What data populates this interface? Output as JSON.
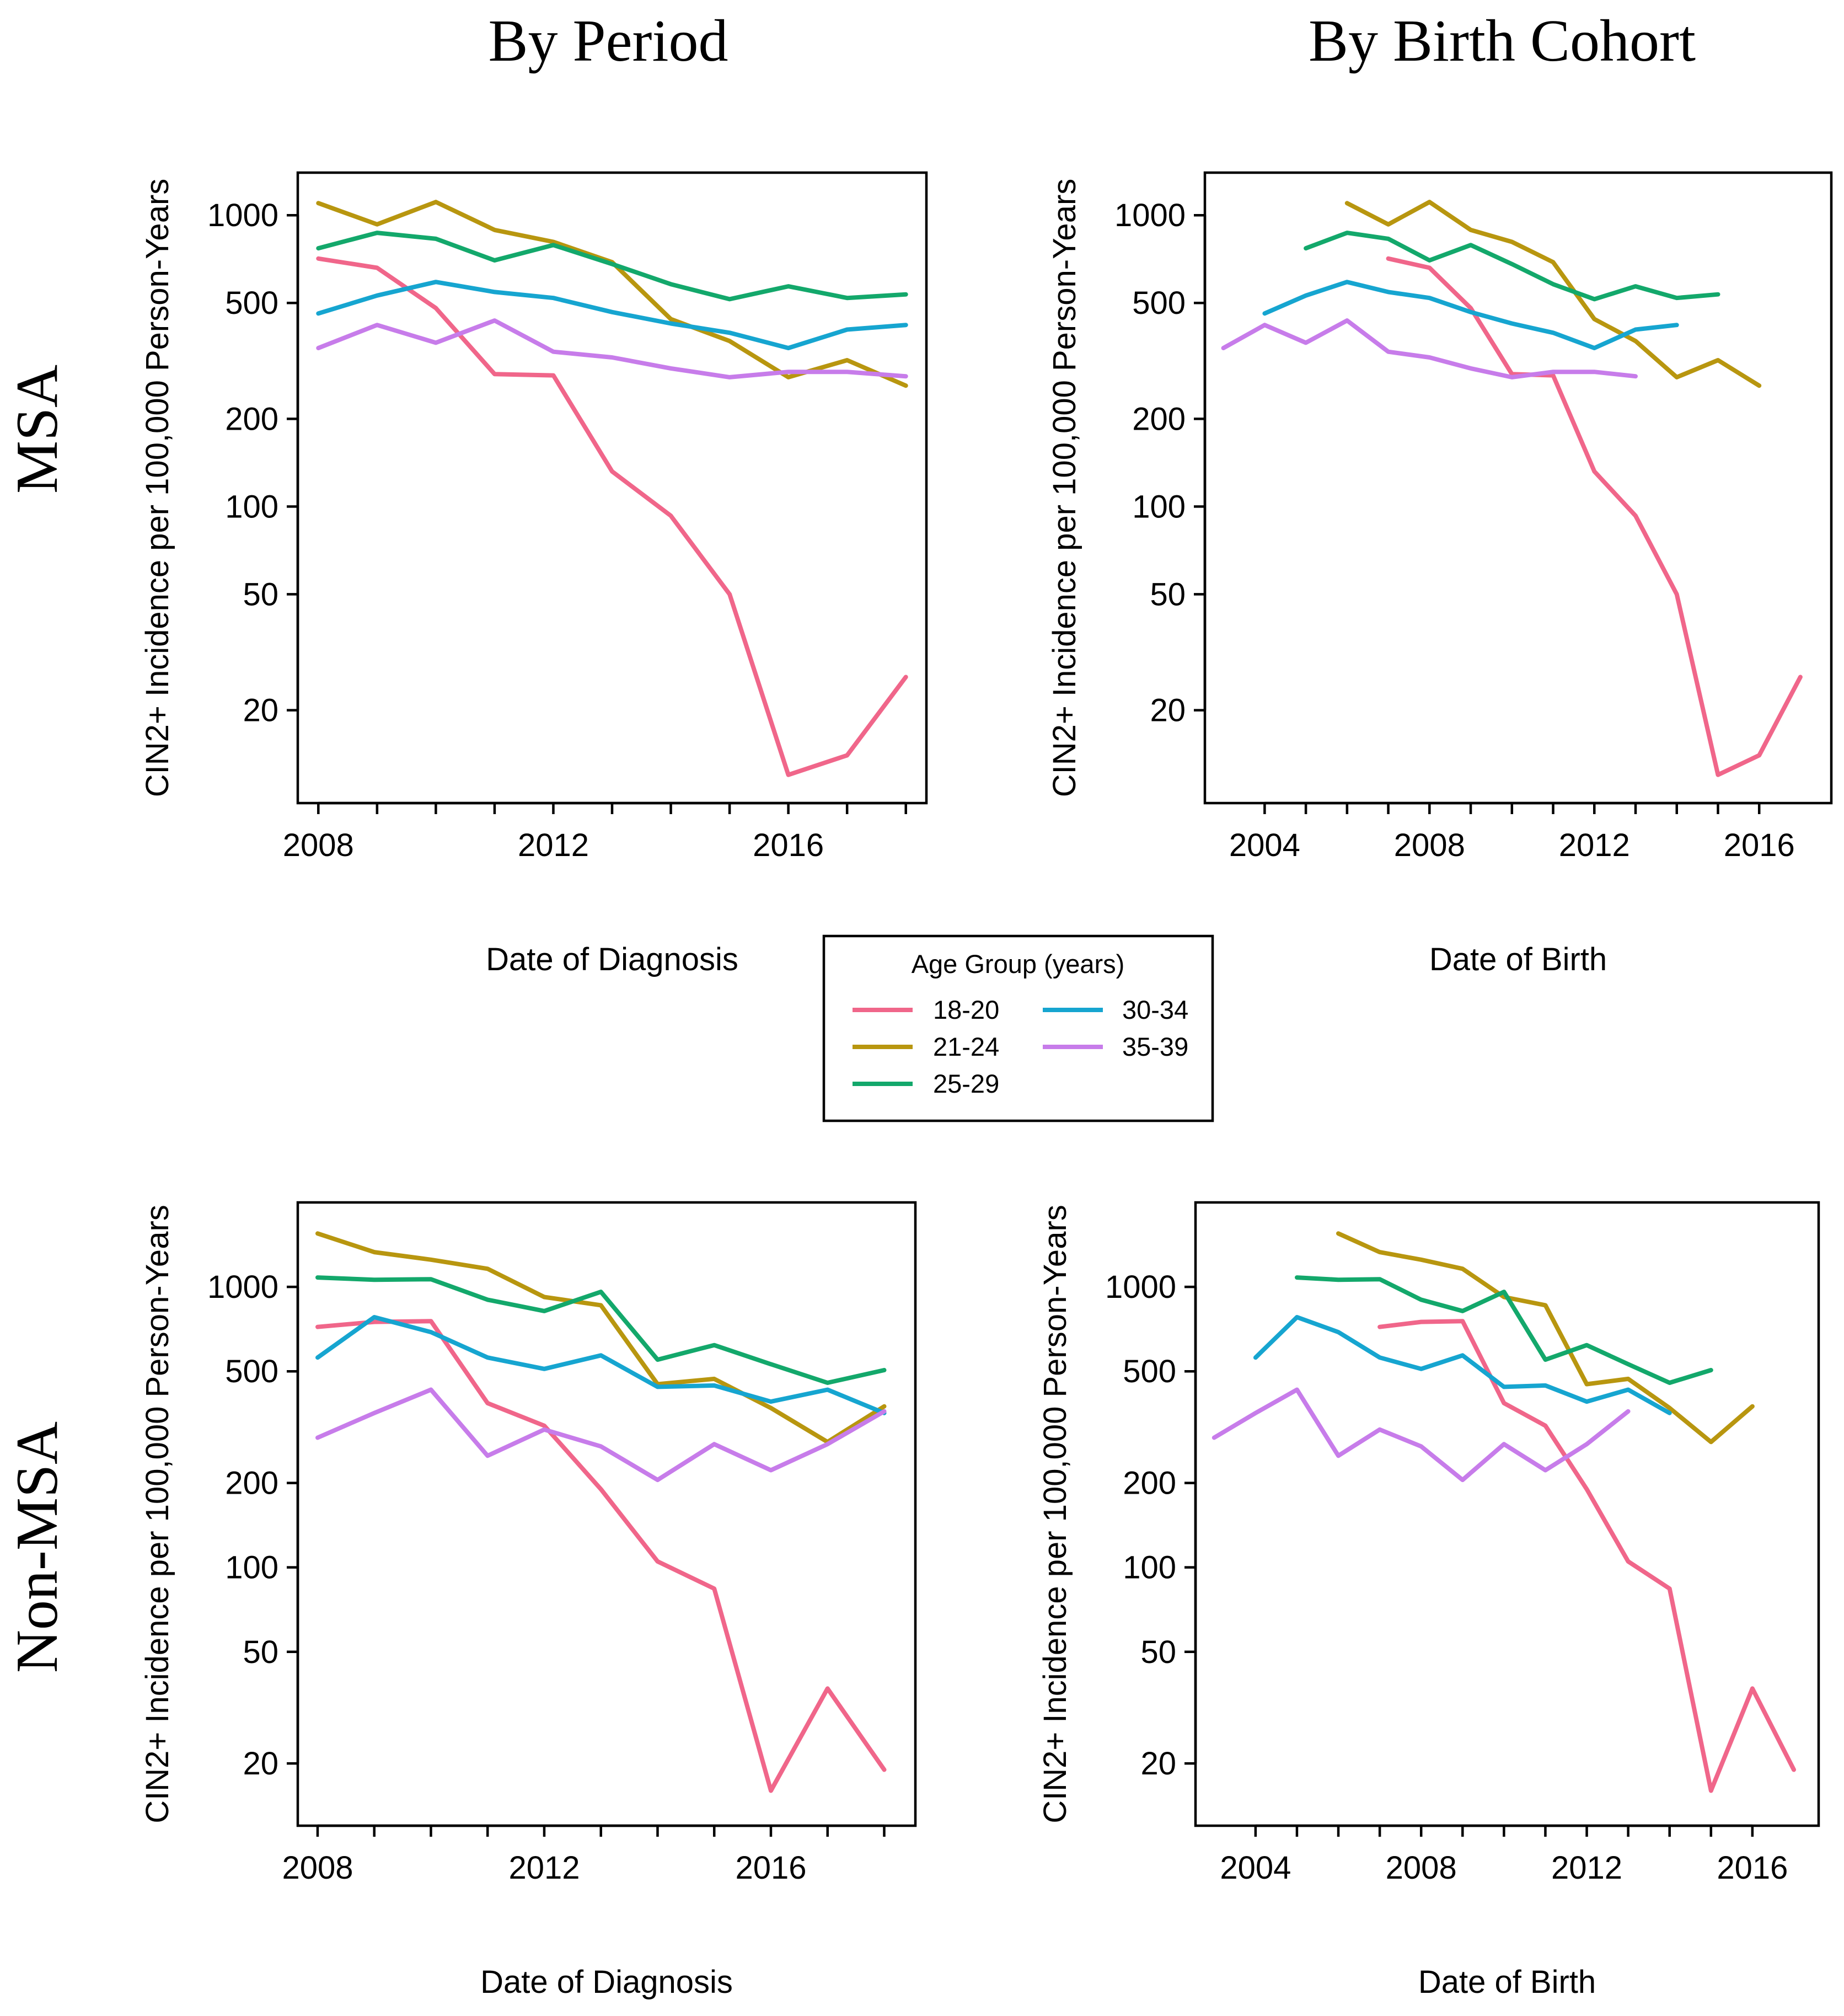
{
  "col_titles": [
    "By Period",
    "By Birth Cohort"
  ],
  "row_titles": [
    "MSA",
    "Non-MSA"
  ],
  "legend": {
    "title": "Age Group (years)",
    "entries": [
      {
        "label": "18-20",
        "color": "#F0668A"
      },
      {
        "label": "21-24",
        "color": "#B8960F"
      },
      {
        "label": "25-29",
        "color": "#13A86B"
      },
      {
        "label": "30-34",
        "color": "#16A5D0"
      },
      {
        "label": "35-39",
        "color": "#C77CEA"
      }
    ]
  },
  "chart_data": [
    {
      "id": "msa-period",
      "type": "line",
      "row": "MSA",
      "column": "By Period",
      "xlabel": "Date of Diagnosis",
      "ylabel": "CIN2+ Incidence per 100,000 Person-Years",
      "yscale": "log",
      "xlim": [
        2007.65,
        2018.35
      ],
      "ylim": [
        9.6,
        1400
      ],
      "xticks": [
        2008,
        2009,
        2010,
        2011,
        2012,
        2013,
        2014,
        2015,
        2016,
        2017,
        2018
      ],
      "xtick_labels": [
        {
          "value": 2008,
          "label": "2008"
        },
        {
          "value": 2012,
          "label": "2012"
        },
        {
          "value": 2016,
          "label": "2016"
        }
      ],
      "yticks": [
        {
          "value": 20,
          "label": "20"
        },
        {
          "value": 50,
          "label": "50"
        },
        {
          "value": 100,
          "label": "100"
        },
        {
          "value": 200,
          "label": "200"
        },
        {
          "value": 500,
          "label": "500"
        },
        {
          "value": 1000,
          "label": "1000"
        }
      ],
      "series": [
        {
          "name": "18-20",
          "x": [
            2008,
            2009,
            2010,
            2011,
            2012,
            2013,
            2014,
            2015,
            2016,
            2017,
            2018
          ],
          "values": [
            710,
            660,
            480,
            285,
            282,
            132,
            93,
            50,
            12,
            14,
            26
          ]
        },
        {
          "name": "21-24",
          "x": [
            2008,
            2009,
            2010,
            2011,
            2012,
            2013,
            2014,
            2015,
            2016,
            2017,
            2018
          ],
          "values": [
            1100,
            930,
            1110,
            890,
            810,
            690,
            440,
            370,
            278,
            318,
            260
          ]
        },
        {
          "name": "25-29",
          "x": [
            2008,
            2009,
            2010,
            2011,
            2012,
            2013,
            2014,
            2015,
            2016,
            2017,
            2018
          ],
          "values": [
            770,
            870,
            830,
            700,
            790,
            680,
            580,
            515,
            570,
            520,
            535
          ]
        },
        {
          "name": "30-34",
          "x": [
            2008,
            2009,
            2010,
            2011,
            2012,
            2013,
            2014,
            2015,
            2016,
            2017,
            2018
          ],
          "values": [
            460,
            530,
            590,
            545,
            520,
            465,
            425,
            395,
            350,
            405,
            420
          ]
        },
        {
          "name": "35-39",
          "x": [
            2008,
            2009,
            2010,
            2011,
            2012,
            2013,
            2014,
            2015,
            2016,
            2017,
            2018
          ],
          "values": [
            350,
            420,
            365,
            435,
            340,
            325,
            298,
            278,
            290,
            290,
            280
          ]
        }
      ]
    },
    {
      "id": "msa-cohort",
      "type": "line",
      "row": "MSA",
      "column": "By Birth Cohort",
      "xlabel": "Date of Birth",
      "ylabel": "CIN2+ Incidence per 100,000 Person-Years",
      "yscale": "log",
      "xlim": [
        2002.55,
        2017.75
      ],
      "ylim": [
        9.6,
        1400
      ],
      "xticks": [
        2004,
        2005,
        2006,
        2007,
        2008,
        2009,
        2010,
        2011,
        2012,
        2013,
        2014,
        2015,
        2016
      ],
      "xtick_labels": [
        {
          "value": 2004,
          "label": "2004"
        },
        {
          "value": 2008,
          "label": "2008"
        },
        {
          "value": 2012,
          "label": "2012"
        },
        {
          "value": 2016,
          "label": "2016"
        }
      ],
      "yticks": [
        {
          "value": 20,
          "label": "20"
        },
        {
          "value": 50,
          "label": "50"
        },
        {
          "value": 100,
          "label": "100"
        },
        {
          "value": 200,
          "label": "200"
        },
        {
          "value": 500,
          "label": "500"
        },
        {
          "value": 1000,
          "label": "1000"
        }
      ],
      "series": [
        {
          "name": "18-20",
          "x": [
            2007,
            2008,
            2009,
            2010,
            2011,
            2012,
            2013,
            2014,
            2015,
            2016,
            2017
          ],
          "values": [
            710,
            660,
            480,
            285,
            282,
            132,
            93,
            50,
            12,
            14,
            26
          ]
        },
        {
          "name": "21-24",
          "x": [
            2006,
            2007,
            2008,
            2009,
            2010,
            2011,
            2012,
            2013,
            2014,
            2015,
            2016
          ],
          "values": [
            1100,
            930,
            1110,
            890,
            810,
            690,
            440,
            370,
            278,
            318,
            260
          ]
        },
        {
          "name": "25-29",
          "x": [
            2005,
            2006,
            2007,
            2008,
            2009,
            2010,
            2011,
            2012,
            2013,
            2014,
            2015
          ],
          "values": [
            770,
            870,
            830,
            700,
            790,
            680,
            580,
            515,
            570,
            520,
            535
          ]
        },
        {
          "name": "30-34",
          "x": [
            2004,
            2005,
            2006,
            2007,
            2008,
            2009,
            2010,
            2011,
            2012,
            2013,
            2014
          ],
          "values": [
            460,
            530,
            590,
            545,
            520,
            465,
            425,
            395,
            350,
            405,
            420
          ]
        },
        {
          "name": "35-39",
          "x": [
            2003,
            2004,
            2005,
            2006,
            2007,
            2008,
            2009,
            2010,
            2011,
            2012,
            2013
          ],
          "values": [
            350,
            420,
            365,
            435,
            340,
            325,
            298,
            278,
            290,
            290,
            280
          ]
        }
      ]
    },
    {
      "id": "nonmsa-period",
      "type": "line",
      "row": "Non-MSA",
      "column": "By Period",
      "xlabel": "Date of Diagnosis",
      "ylabel": "CIN2+ Incidence per 100,000 Person-Years",
      "yscale": "log",
      "xlim": [
        2007.65,
        2018.55
      ],
      "ylim": [
        12,
        2000
      ],
      "xticks": [
        2008,
        2009,
        2010,
        2011,
        2012,
        2013,
        2014,
        2015,
        2016,
        2017,
        2018
      ],
      "xtick_labels": [
        {
          "value": 2008,
          "label": "2008"
        },
        {
          "value": 2012,
          "label": "2012"
        },
        {
          "value": 2016,
          "label": "2016"
        }
      ],
      "yticks": [
        {
          "value": 20,
          "label": "20"
        },
        {
          "value": 50,
          "label": "50"
        },
        {
          "value": 100,
          "label": "100"
        },
        {
          "value": 200,
          "label": "200"
        },
        {
          "value": 500,
          "label": "500"
        },
        {
          "value": 1000,
          "label": "1000"
        }
      ],
      "series": [
        {
          "name": "18-20",
          "x": [
            2008,
            2009,
            2010,
            2011,
            2012,
            2013,
            2014,
            2015,
            2016,
            2017,
            2018
          ],
          "values": [
            720,
            750,
            755,
            385,
            320,
            190,
            105,
            84,
            16,
            37,
            19
          ]
        },
        {
          "name": "21-24",
          "x": [
            2008,
            2009,
            2010,
            2011,
            2012,
            2013,
            2014,
            2015,
            2016,
            2017,
            2018
          ],
          "values": [
            1550,
            1330,
            1250,
            1160,
            920,
            860,
            450,
            470,
            370,
            280,
            375
          ]
        },
        {
          "name": "25-29",
          "x": [
            2008,
            2009,
            2010,
            2011,
            2012,
            2013,
            2014,
            2015,
            2016,
            2017,
            2018
          ],
          "values": [
            1080,
            1060,
            1065,
            900,
            820,
            960,
            550,
            620,
            530,
            455,
            505
          ]
        },
        {
          "name": "30-34",
          "x": [
            2008,
            2009,
            2010,
            2011,
            2012,
            2013,
            2014,
            2015,
            2016,
            2017,
            2018
          ],
          "values": [
            560,
            780,
            690,
            560,
            510,
            570,
            440,
            445,
            390,
            430,
            355
          ]
        },
        {
          "name": "35-39",
          "x": [
            2008,
            2009,
            2010,
            2011,
            2012,
            2013,
            2014,
            2015,
            2016,
            2017,
            2018
          ],
          "values": [
            290,
            355,
            430,
            250,
            310,
            270,
            205,
            275,
            222,
            275,
            360
          ]
        }
      ]
    },
    {
      "id": "nonmsa-cohort",
      "type": "line",
      "row": "Non-MSA",
      "column": "By Birth Cohort",
      "xlabel": "Date of Birth",
      "ylabel": "CIN2+ Incidence per 100,000 Person-Years",
      "yscale": "log",
      "xlim": [
        2002.55,
        2017.6
      ],
      "ylim": [
        12,
        2000
      ],
      "xticks": [
        2004,
        2005,
        2006,
        2007,
        2008,
        2009,
        2010,
        2011,
        2012,
        2013,
        2014,
        2015,
        2016
      ],
      "xtick_labels": [
        {
          "value": 2004,
          "label": "2004"
        },
        {
          "value": 2008,
          "label": "2008"
        },
        {
          "value": 2012,
          "label": "2012"
        },
        {
          "value": 2016,
          "label": "2016"
        }
      ],
      "yticks": [
        {
          "value": 20,
          "label": "20"
        },
        {
          "value": 50,
          "label": "50"
        },
        {
          "value": 100,
          "label": "100"
        },
        {
          "value": 200,
          "label": "200"
        },
        {
          "value": 500,
          "label": "500"
        },
        {
          "value": 1000,
          "label": "1000"
        }
      ],
      "series": [
        {
          "name": "18-20",
          "x": [
            2007,
            2008,
            2009,
            2010,
            2011,
            2012,
            2013,
            2014,
            2015,
            2016,
            2017
          ],
          "values": [
            720,
            750,
            755,
            385,
            320,
            190,
            105,
            84,
            16,
            37,
            19
          ]
        },
        {
          "name": "21-24",
          "x": [
            2006,
            2007,
            2008,
            2009,
            2010,
            2011,
            2012,
            2013,
            2014,
            2015,
            2016
          ],
          "values": [
            1550,
            1330,
            1250,
            1160,
            920,
            860,
            450,
            470,
            370,
            280,
            375
          ]
        },
        {
          "name": "25-29",
          "x": [
            2005,
            2006,
            2007,
            2008,
            2009,
            2010,
            2011,
            2012,
            2013,
            2014,
            2015
          ],
          "values": [
            1080,
            1060,
            1065,
            900,
            820,
            960,
            550,
            620,
            530,
            455,
            505
          ]
        },
        {
          "name": "30-34",
          "x": [
            2004,
            2005,
            2006,
            2007,
            2008,
            2009,
            2010,
            2011,
            2012,
            2013,
            2014
          ],
          "values": [
            560,
            780,
            690,
            560,
            510,
            570,
            440,
            445,
            390,
            430,
            355
          ]
        },
        {
          "name": "35-39",
          "x": [
            2003,
            2004,
            2005,
            2006,
            2007,
            2008,
            2009,
            2010,
            2011,
            2012,
            2013
          ],
          "values": [
            290,
            355,
            430,
            250,
            310,
            270,
            205,
            275,
            222,
            275,
            360
          ]
        }
      ]
    }
  ]
}
